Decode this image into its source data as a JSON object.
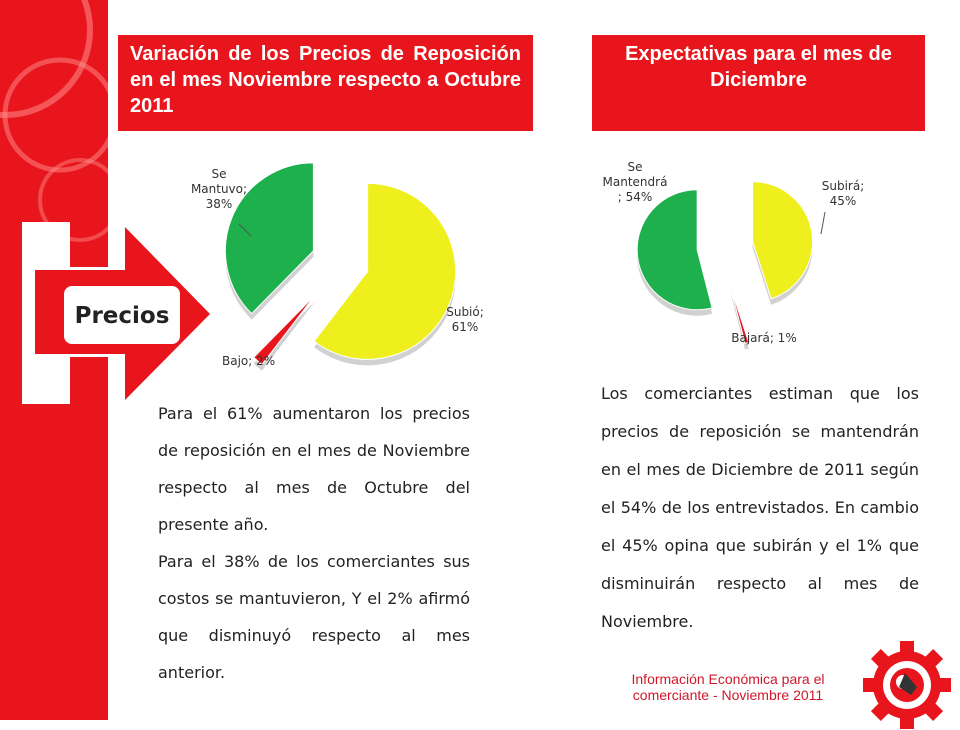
{
  "left_section": {
    "title": "Variación de los Precios de Reposición en el mes Noviembre respecto a Octubre 2011",
    "label_precios": "Precios",
    "description_1": "Para el 61% aumentaron los precios de reposición en el mes de Noviembre respecto al mes de Octubre del presente año.",
    "description_2": "Para el 38% de los comerciantes sus costos se mantuvieron,  Y el 2% afirmó que disminuyó respecto al mes anterior."
  },
  "right_section": {
    "title": "Expectativas para el mes de Diciembre",
    "description": "Los comerciantes estiman que los precios de reposición se mantendrán en el mes de Diciembre de 2011 según el 54% de los entrevistados. En cambio el 45% opina que subirán y el 1% que disminuirán respecto al mes de Noviembre."
  },
  "footer": {
    "line1": "Información Económica para el",
    "line2": "comerciante -  Noviembre 2011"
  },
  "colors": {
    "accent": "#e8161c",
    "yellow": "#f0ef1e",
    "green": "#1db04d",
    "red": "#e8161c"
  },
  "chart_data": [
    {
      "type": "pie",
      "slices": [
        {
          "name": "Subió",
          "value": 61,
          "color": "#f0ef1e",
          "label": "Subió; 61%",
          "lines": [
            "Subió;",
            "61%"
          ]
        },
        {
          "name": "Bajo",
          "value": 2,
          "color": "#e8161c",
          "label": "Bajo; 2%",
          "lines": [
            "Bajo; 2%"
          ]
        },
        {
          "name": "Se Mantuvo",
          "value": 38,
          "color": "#1db04d",
          "label": "Se Mantuvo; 38%",
          "lines": [
            "Se",
            "Mantuvo;",
            "38%"
          ]
        }
      ]
    },
    {
      "type": "pie",
      "slices": [
        {
          "name": "Subirá",
          "value": 45,
          "color": "#f0ef1e",
          "label": "Subirá; 45%",
          "lines": [
            "Subirá;",
            "45%"
          ]
        },
        {
          "name": "Bajará",
          "value": 1,
          "color": "#e8161c",
          "label": "Bajará; 1%",
          "lines": [
            "Bajará; 1%"
          ]
        },
        {
          "name": "Se Mantendrá",
          "value": 54,
          "color": "#1db04d",
          "label": "Se Mantendrá; 54%",
          "lines": [
            "Se",
            "Mantendrá",
            "; 54%"
          ]
        }
      ]
    }
  ]
}
